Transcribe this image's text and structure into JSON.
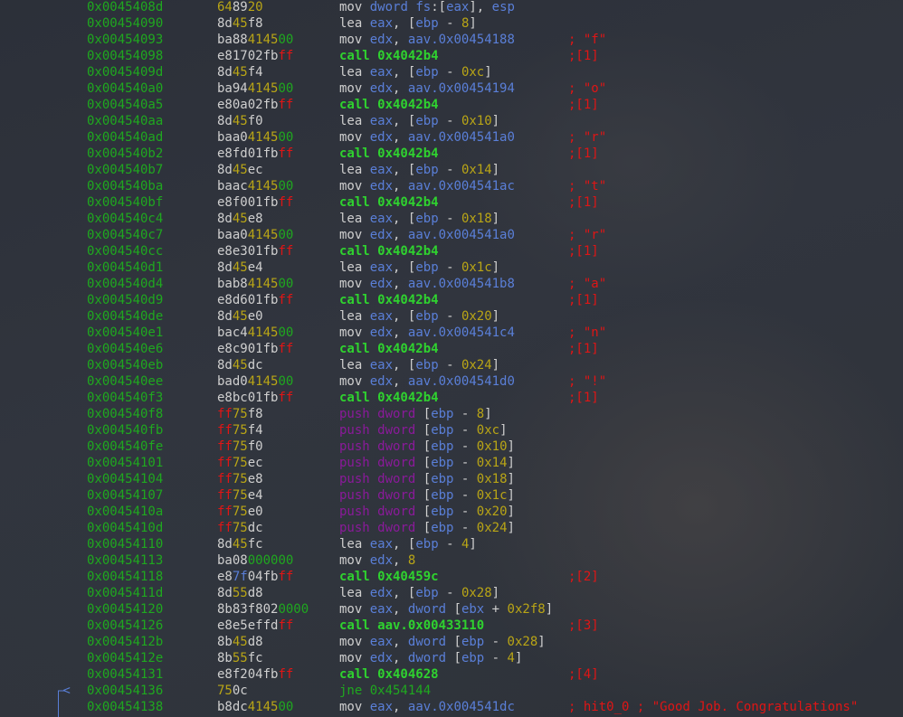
{
  "disassembly": [
    {
      "addr": "0x0045408d",
      "bytes": "648920",
      "op": "mov dword fs:[eax], esp",
      "comment": ""
    },
    {
      "addr": "0x00454090",
      "bytes": "8d45f8",
      "op": "lea eax, [ebp - 8]",
      "comment": ""
    },
    {
      "addr": "0x00454093",
      "bytes": "ba88414500",
      "op": "mov edx, aav.0x00454188",
      "comment": "; \"f\""
    },
    {
      "addr": "0x00454098",
      "bytes": "e81702fbff",
      "op": "call 0x4042b4",
      "comment": ";[1]"
    },
    {
      "addr": "0x0045409d",
      "bytes": "8d45f4",
      "op": "lea eax, [ebp - 0xc]",
      "comment": ""
    },
    {
      "addr": "0x004540a0",
      "bytes": "ba94414500",
      "op": "mov edx, aav.0x00454194",
      "comment": "; \"o\""
    },
    {
      "addr": "0x004540a5",
      "bytes": "e80a02fbff",
      "op": "call 0x4042b4",
      "comment": ";[1]"
    },
    {
      "addr": "0x004540aa",
      "bytes": "8d45f0",
      "op": "lea eax, [ebp - 0x10]",
      "comment": ""
    },
    {
      "addr": "0x004540ad",
      "bytes": "baa0414500",
      "op": "mov edx, aav.0x004541a0",
      "comment": "; \"r\""
    },
    {
      "addr": "0x004540b2",
      "bytes": "e8fd01fbff",
      "op": "call 0x4042b4",
      "comment": ";[1]"
    },
    {
      "addr": "0x004540b7",
      "bytes": "8d45ec",
      "op": "lea eax, [ebp - 0x14]",
      "comment": ""
    },
    {
      "addr": "0x004540ba",
      "bytes": "baac414500",
      "op": "mov edx, aav.0x004541ac",
      "comment": "; \"t\""
    },
    {
      "addr": "0x004540bf",
      "bytes": "e8f001fbff",
      "op": "call 0x4042b4",
      "comment": ";[1]"
    },
    {
      "addr": "0x004540c4",
      "bytes": "8d45e8",
      "op": "lea eax, [ebp - 0x18]",
      "comment": ""
    },
    {
      "addr": "0x004540c7",
      "bytes": "baa0414500",
      "op": "mov edx, aav.0x004541a0",
      "comment": "; \"r\""
    },
    {
      "addr": "0x004540cc",
      "bytes": "e8e301fbff",
      "op": "call 0x4042b4",
      "comment": ";[1]"
    },
    {
      "addr": "0x004540d1",
      "bytes": "8d45e4",
      "op": "lea eax, [ebp - 0x1c]",
      "comment": ""
    },
    {
      "addr": "0x004540d4",
      "bytes": "bab8414500",
      "op": "mov edx, aav.0x004541b8",
      "comment": "; \"a\""
    },
    {
      "addr": "0x004540d9",
      "bytes": "e8d601fbff",
      "op": "call 0x4042b4",
      "comment": ";[1]"
    },
    {
      "addr": "0x004540de",
      "bytes": "8d45e0",
      "op": "lea eax, [ebp - 0x20]",
      "comment": ""
    },
    {
      "addr": "0x004540e1",
      "bytes": "bac4414500",
      "op": "mov edx, aav.0x004541c4",
      "comment": "; \"n\""
    },
    {
      "addr": "0x004540e6",
      "bytes": "e8c901fbff",
      "op": "call 0x4042b4",
      "comment": ";[1]"
    },
    {
      "addr": "0x004540eb",
      "bytes": "8d45dc",
      "op": "lea eax, [ebp - 0x24]",
      "comment": ""
    },
    {
      "addr": "0x004540ee",
      "bytes": "bad0414500",
      "op": "mov edx, aav.0x004541d0",
      "comment": "; \"!\""
    },
    {
      "addr": "0x004540f3",
      "bytes": "e8bc01fbff",
      "op": "call 0x4042b4",
      "comment": ";[1]"
    },
    {
      "addr": "0x004540f8",
      "bytes": "ff75f8",
      "op": "push dword [ebp - 8]",
      "comment": ""
    },
    {
      "addr": "0x004540fb",
      "bytes": "ff75f4",
      "op": "push dword [ebp - 0xc]",
      "comment": ""
    },
    {
      "addr": "0x004540fe",
      "bytes": "ff75f0",
      "op": "push dword [ebp - 0x10]",
      "comment": ""
    },
    {
      "addr": "0x00454101",
      "bytes": "ff75ec",
      "op": "push dword [ebp - 0x14]",
      "comment": ""
    },
    {
      "addr": "0x00454104",
      "bytes": "ff75e8",
      "op": "push dword [ebp - 0x18]",
      "comment": ""
    },
    {
      "addr": "0x00454107",
      "bytes": "ff75e4",
      "op": "push dword [ebp - 0x1c]",
      "comment": ""
    },
    {
      "addr": "0x0045410a",
      "bytes": "ff75e0",
      "op": "push dword [ebp - 0x20]",
      "comment": ""
    },
    {
      "addr": "0x0045410d",
      "bytes": "ff75dc",
      "op": "push dword [ebp - 0x24]",
      "comment": ""
    },
    {
      "addr": "0x00454110",
      "bytes": "8d45fc",
      "op": "lea eax, [ebp - 4]",
      "comment": ""
    },
    {
      "addr": "0x00454113",
      "bytes": "ba08000000",
      "op": "mov edx, 8",
      "comment": ""
    },
    {
      "addr": "0x00454118",
      "bytes": "e87f04fbff",
      "op": "call 0x40459c",
      "comment": ";[2]"
    },
    {
      "addr": "0x0045411d",
      "bytes": "8d55d8",
      "op": "lea edx, [ebp - 0x28]",
      "comment": ""
    },
    {
      "addr": "0x00454120",
      "bytes": "8b83f8020000",
      "op": "mov eax, dword [ebx + 0x2f8]",
      "comment": ""
    },
    {
      "addr": "0x00454126",
      "bytes": "e8e5effdff",
      "op": "call aav.0x00433110",
      "comment": ";[3]"
    },
    {
      "addr": "0x0045412b",
      "bytes": "8b45d8",
      "op": "mov eax, dword [ebp - 0x28]",
      "comment": ""
    },
    {
      "addr": "0x0045412e",
      "bytes": "8b55fc",
      "op": "mov edx, dword [ebp - 4]",
      "comment": ""
    },
    {
      "addr": "0x00454131",
      "bytes": "e8f204fbff",
      "op": "call 0x404628",
      "comment": ";[4]"
    },
    {
      "addr": "0x00454136",
      "bytes": "750c",
      "op": "jne 0x454144",
      "comment": "",
      "jump_arrow": "<"
    },
    {
      "addr": "0x00454138",
      "bytes": "b8dc414500",
      "op": "mov eax, aav.0x004541dc",
      "comment": "; hit0_0 ; \"Good Job. Congratulations\""
    }
  ],
  "colors": {
    "address": "#1fa81f",
    "register": "#5a7fd8",
    "number": "#b9a516",
    "call": "#2fd22f",
    "push": "#8a1a9a",
    "comment": "#e01515",
    "background": "#2e3239"
  }
}
